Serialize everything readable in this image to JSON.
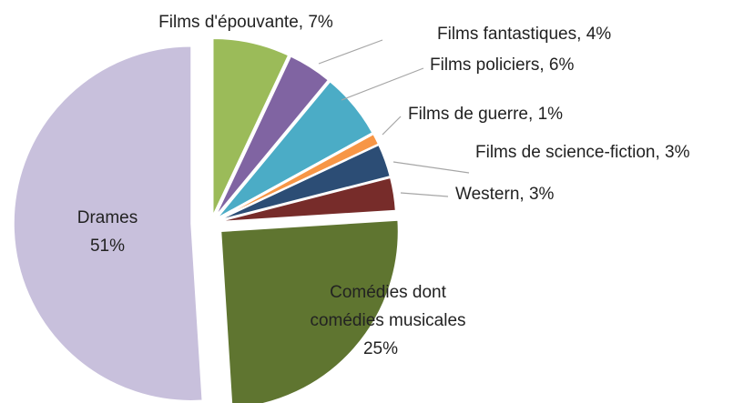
{
  "chart_data": {
    "type": "pie",
    "categories": [
      "Films d'épouvante",
      "Films fantastiques",
      "Films policiers",
      "Films de guerre",
      "Films de science-fiction",
      "Western",
      "Comédies dont comédies musicales",
      "Drames"
    ],
    "values": [
      7,
      4,
      6,
      1,
      3,
      3,
      25,
      51
    ],
    "value_labels": [
      "7%",
      "4%",
      "6%",
      "1%",
      "3%",
      "3%",
      "25%",
      "51%"
    ],
    "colors": [
      "#9bbb59",
      "#8064a2",
      "#4bacc6",
      "#f79646",
      "#2c4d75",
      "#772c2a",
      "#5f7530",
      "#c8c0dc"
    ]
  }
}
